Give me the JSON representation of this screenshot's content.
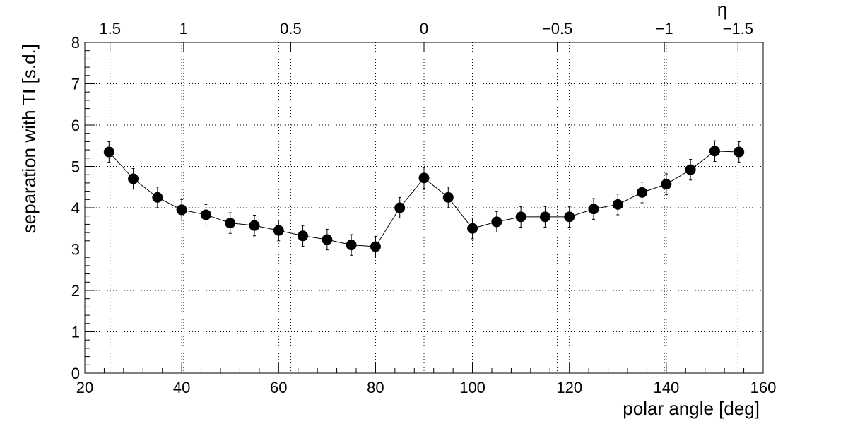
{
  "chart_data": {
    "type": "scatter",
    "xlabel": "polar angle [deg]",
    "ylabel": "separation with TI [s.d.]",
    "top_axis_label": "η",
    "xlim": [
      20,
      160
    ],
    "ylim": [
      0,
      8
    ],
    "x_ticks": [
      20,
      40,
      60,
      80,
      100,
      120,
      140,
      160
    ],
    "y_ticks": [
      0,
      1,
      2,
      3,
      4,
      5,
      6,
      7,
      8
    ],
    "top_ticks": [
      {
        "label": "1.5",
        "angle": 25.2
      },
      {
        "label": "1",
        "angle": 40.4
      },
      {
        "label": "0.5",
        "angle": 62.5
      },
      {
        "label": "0",
        "angle": 90
      },
      {
        "label": "−0.5",
        "angle": 117.5
      },
      {
        "label": "−1",
        "angle": 139.6
      },
      {
        "label": "−1.5",
        "angle": 154.8
      }
    ],
    "grid": true,
    "marker_color": "#000000",
    "series": [
      {
        "x": [
          25,
          30,
          35,
          40,
          45,
          50,
          55,
          60,
          65,
          70,
          75,
          80,
          85,
          90,
          95,
          100,
          105,
          110,
          115,
          120,
          125,
          130,
          135,
          140,
          145,
          150,
          155
        ],
        "y": [
          5.35,
          4.7,
          4.25,
          3.95,
          3.83,
          3.63,
          3.57,
          3.45,
          3.32,
          3.23,
          3.1,
          3.06,
          4.0,
          4.72,
          4.25,
          3.5,
          3.66,
          3.78,
          3.78,
          3.78,
          3.97,
          4.08,
          4.37,
          4.57,
          4.92,
          5.37,
          5.35
        ],
        "yerr": [
          0.25,
          0.25,
          0.25,
          0.25,
          0.25,
          0.25,
          0.25,
          0.25,
          0.25,
          0.25,
          0.25,
          0.25,
          0.25,
          0.25,
          0.25,
          0.25,
          0.25,
          0.25,
          0.25,
          0.25,
          0.25,
          0.25,
          0.25,
          0.25,
          0.25,
          0.25,
          0.25
        ]
      }
    ]
  }
}
